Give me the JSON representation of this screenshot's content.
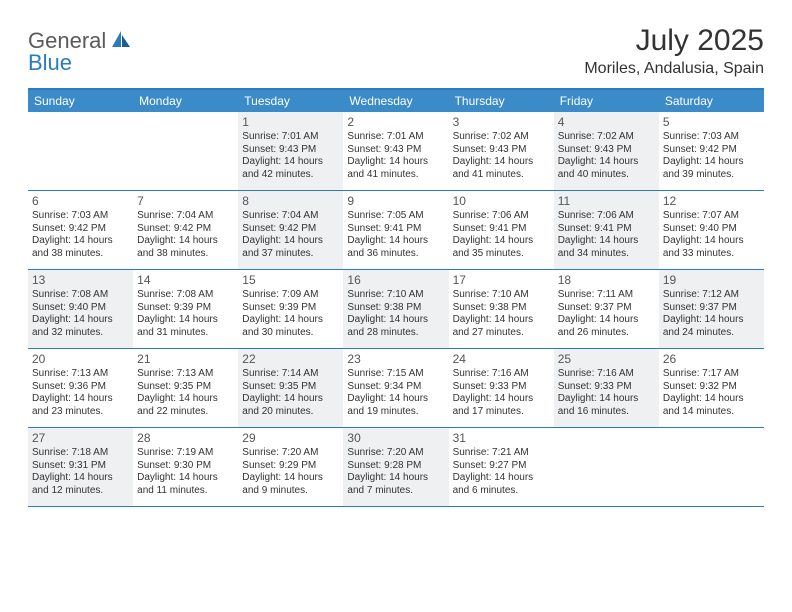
{
  "logo": {
    "part1": "General",
    "part2": "Blue"
  },
  "title": "July 2025",
  "location": "Moriles, Andalusia, Spain",
  "colors": {
    "header_bg": "#3b8bc9",
    "border": "#2b7bbf",
    "shaded_bg": "#eef0f1",
    "text": "#333333",
    "logo_gray": "#5a5a5a",
    "logo_blue": "#2b7bbf"
  },
  "daynames": [
    "Sunday",
    "Monday",
    "Tuesday",
    "Wednesday",
    "Thursday",
    "Friday",
    "Saturday"
  ],
  "weeks": [
    [
      {
        "empty": true,
        "shaded": false
      },
      {
        "empty": true,
        "shaded": false
      },
      {
        "day": "1",
        "shaded": true,
        "sunrise": "Sunrise: 7:01 AM",
        "sunset": "Sunset: 9:43 PM",
        "dl1": "Daylight: 14 hours",
        "dl2": "and 42 minutes."
      },
      {
        "day": "2",
        "shaded": false,
        "sunrise": "Sunrise: 7:01 AM",
        "sunset": "Sunset: 9:43 PM",
        "dl1": "Daylight: 14 hours",
        "dl2": "and 41 minutes."
      },
      {
        "day": "3",
        "shaded": false,
        "sunrise": "Sunrise: 7:02 AM",
        "sunset": "Sunset: 9:43 PM",
        "dl1": "Daylight: 14 hours",
        "dl2": "and 41 minutes."
      },
      {
        "day": "4",
        "shaded": true,
        "sunrise": "Sunrise: 7:02 AM",
        "sunset": "Sunset: 9:43 PM",
        "dl1": "Daylight: 14 hours",
        "dl2": "and 40 minutes."
      },
      {
        "day": "5",
        "shaded": false,
        "sunrise": "Sunrise: 7:03 AM",
        "sunset": "Sunset: 9:42 PM",
        "dl1": "Daylight: 14 hours",
        "dl2": "and 39 minutes."
      }
    ],
    [
      {
        "day": "6",
        "shaded": false,
        "sunrise": "Sunrise: 7:03 AM",
        "sunset": "Sunset: 9:42 PM",
        "dl1": "Daylight: 14 hours",
        "dl2": "and 38 minutes."
      },
      {
        "day": "7",
        "shaded": false,
        "sunrise": "Sunrise: 7:04 AM",
        "sunset": "Sunset: 9:42 PM",
        "dl1": "Daylight: 14 hours",
        "dl2": "and 38 minutes."
      },
      {
        "day": "8",
        "shaded": true,
        "sunrise": "Sunrise: 7:04 AM",
        "sunset": "Sunset: 9:42 PM",
        "dl1": "Daylight: 14 hours",
        "dl2": "and 37 minutes."
      },
      {
        "day": "9",
        "shaded": false,
        "sunrise": "Sunrise: 7:05 AM",
        "sunset": "Sunset: 9:41 PM",
        "dl1": "Daylight: 14 hours",
        "dl2": "and 36 minutes."
      },
      {
        "day": "10",
        "shaded": false,
        "sunrise": "Sunrise: 7:06 AM",
        "sunset": "Sunset: 9:41 PM",
        "dl1": "Daylight: 14 hours",
        "dl2": "and 35 minutes."
      },
      {
        "day": "11",
        "shaded": true,
        "sunrise": "Sunrise: 7:06 AM",
        "sunset": "Sunset: 9:41 PM",
        "dl1": "Daylight: 14 hours",
        "dl2": "and 34 minutes."
      },
      {
        "day": "12",
        "shaded": false,
        "sunrise": "Sunrise: 7:07 AM",
        "sunset": "Sunset: 9:40 PM",
        "dl1": "Daylight: 14 hours",
        "dl2": "and 33 minutes."
      }
    ],
    [
      {
        "day": "13",
        "shaded": true,
        "sunrise": "Sunrise: 7:08 AM",
        "sunset": "Sunset: 9:40 PM",
        "dl1": "Daylight: 14 hours",
        "dl2": "and 32 minutes."
      },
      {
        "day": "14",
        "shaded": false,
        "sunrise": "Sunrise: 7:08 AM",
        "sunset": "Sunset: 9:39 PM",
        "dl1": "Daylight: 14 hours",
        "dl2": "and 31 minutes."
      },
      {
        "day": "15",
        "shaded": false,
        "sunrise": "Sunrise: 7:09 AM",
        "sunset": "Sunset: 9:39 PM",
        "dl1": "Daylight: 14 hours",
        "dl2": "and 30 minutes."
      },
      {
        "day": "16",
        "shaded": true,
        "sunrise": "Sunrise: 7:10 AM",
        "sunset": "Sunset: 9:38 PM",
        "dl1": "Daylight: 14 hours",
        "dl2": "and 28 minutes."
      },
      {
        "day": "17",
        "shaded": false,
        "sunrise": "Sunrise: 7:10 AM",
        "sunset": "Sunset: 9:38 PM",
        "dl1": "Daylight: 14 hours",
        "dl2": "and 27 minutes."
      },
      {
        "day": "18",
        "shaded": false,
        "sunrise": "Sunrise: 7:11 AM",
        "sunset": "Sunset: 9:37 PM",
        "dl1": "Daylight: 14 hours",
        "dl2": "and 26 minutes."
      },
      {
        "day": "19",
        "shaded": true,
        "sunrise": "Sunrise: 7:12 AM",
        "sunset": "Sunset: 9:37 PM",
        "dl1": "Daylight: 14 hours",
        "dl2": "and 24 minutes."
      }
    ],
    [
      {
        "day": "20",
        "shaded": false,
        "sunrise": "Sunrise: 7:13 AM",
        "sunset": "Sunset: 9:36 PM",
        "dl1": "Daylight: 14 hours",
        "dl2": "and 23 minutes."
      },
      {
        "day": "21",
        "shaded": false,
        "sunrise": "Sunrise: 7:13 AM",
        "sunset": "Sunset: 9:35 PM",
        "dl1": "Daylight: 14 hours",
        "dl2": "and 22 minutes."
      },
      {
        "day": "22",
        "shaded": true,
        "sunrise": "Sunrise: 7:14 AM",
        "sunset": "Sunset: 9:35 PM",
        "dl1": "Daylight: 14 hours",
        "dl2": "and 20 minutes."
      },
      {
        "day": "23",
        "shaded": false,
        "sunrise": "Sunrise: 7:15 AM",
        "sunset": "Sunset: 9:34 PM",
        "dl1": "Daylight: 14 hours",
        "dl2": "and 19 minutes."
      },
      {
        "day": "24",
        "shaded": false,
        "sunrise": "Sunrise: 7:16 AM",
        "sunset": "Sunset: 9:33 PM",
        "dl1": "Daylight: 14 hours",
        "dl2": "and 17 minutes."
      },
      {
        "day": "25",
        "shaded": true,
        "sunrise": "Sunrise: 7:16 AM",
        "sunset": "Sunset: 9:33 PM",
        "dl1": "Daylight: 14 hours",
        "dl2": "and 16 minutes."
      },
      {
        "day": "26",
        "shaded": false,
        "sunrise": "Sunrise: 7:17 AM",
        "sunset": "Sunset: 9:32 PM",
        "dl1": "Daylight: 14 hours",
        "dl2": "and 14 minutes."
      }
    ],
    [
      {
        "day": "27",
        "shaded": true,
        "sunrise": "Sunrise: 7:18 AM",
        "sunset": "Sunset: 9:31 PM",
        "dl1": "Daylight: 14 hours",
        "dl2": "and 12 minutes."
      },
      {
        "day": "28",
        "shaded": false,
        "sunrise": "Sunrise: 7:19 AM",
        "sunset": "Sunset: 9:30 PM",
        "dl1": "Daylight: 14 hours",
        "dl2": "and 11 minutes."
      },
      {
        "day": "29",
        "shaded": false,
        "sunrise": "Sunrise: 7:20 AM",
        "sunset": "Sunset: 9:29 PM",
        "dl1": "Daylight: 14 hours",
        "dl2": "and 9 minutes."
      },
      {
        "day": "30",
        "shaded": true,
        "sunrise": "Sunrise: 7:20 AM",
        "sunset": "Sunset: 9:28 PM",
        "dl1": "Daylight: 14 hours",
        "dl2": "and 7 minutes."
      },
      {
        "day": "31",
        "shaded": false,
        "sunrise": "Sunrise: 7:21 AM",
        "sunset": "Sunset: 9:27 PM",
        "dl1": "Daylight: 14 hours",
        "dl2": "and 6 minutes."
      },
      {
        "empty": true,
        "shaded": false
      },
      {
        "empty": true,
        "shaded": false
      }
    ]
  ]
}
